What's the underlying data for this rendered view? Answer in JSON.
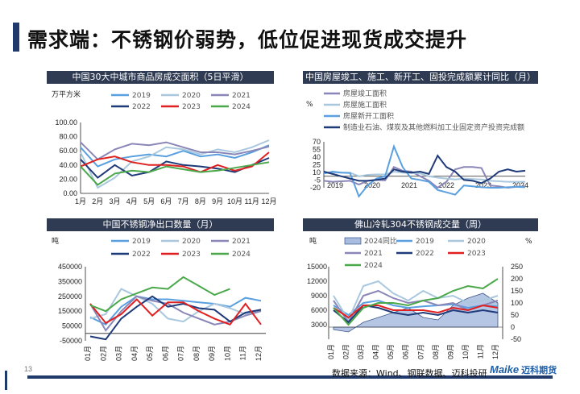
{
  "page": {
    "title": "需求端：不锈钢价弱势，低位促进现货成交提升",
    "page_number": "13",
    "source": "数据来源：Wind、钢联数据、迈科投研",
    "logo_text": "Maike",
    "logo_cn": "迈科期货"
  },
  "colors": {
    "title_bar": "#1f3a6b",
    "panel_header": "#2f3b52",
    "y2019": "#5aa0e0",
    "y2020": "#a9c8de",
    "y2021": "#8a86b8",
    "y2022": "#1f3a78",
    "y2023": "#e02020",
    "y2024": "#4aa84a"
  },
  "chart_data": [
    {
      "id": "chart1",
      "type": "line",
      "title": "中国30大中城市商品房成交面积（5日平滑）",
      "unit_label": "万平方米",
      "categories": [
        "1月",
        "2月",
        "3月",
        "4月",
        "5月",
        "6月",
        "7月",
        "8月",
        "9月",
        "10月",
        "11月",
        "12月"
      ],
      "y_ticks": [
        "100.00",
        "80.00",
        "60.00",
        "40.00",
        "20.00",
        "0.00"
      ],
      "ylim": [
        0,
        100
      ],
      "series": [
        {
          "name": "2019",
          "color": "#5aa0e0",
          "values": [
            65,
            38,
            48,
            52,
            55,
            52,
            60,
            52,
            55,
            50,
            58,
            68
          ]
        },
        {
          "name": "2020",
          "color": "#a9c8de",
          "values": [
            58,
            8,
            22,
            45,
            52,
            65,
            62,
            55,
            62,
            58,
            65,
            75
          ]
        },
        {
          "name": "2021",
          "color": "#8a86b8",
          "values": [
            72,
            48,
            62,
            70,
            68,
            72,
            65,
            58,
            58,
            55,
            60,
            66
          ]
        },
        {
          "name": "2022",
          "color": "#1f3a78",
          "values": [
            48,
            22,
            40,
            25,
            30,
            45,
            40,
            38,
            35,
            30,
            40,
            50
          ]
        },
        {
          "name": "2023",
          "color": "#e02020",
          "values": [
            38,
            48,
            52,
            44,
            40,
            40,
            38,
            30,
            40,
            32,
            38,
            58
          ]
        },
        {
          "name": "2024",
          "color": "#4aa84a",
          "values": [
            38,
            12,
            28,
            32,
            30,
            38,
            34,
            30,
            32,
            36,
            40,
            44
          ]
        }
      ]
    },
    {
      "id": "chart2",
      "type": "line",
      "title": "中国房屋竣工、施工、新开工、固投完成额累计同比（月）",
      "unit_label": "%",
      "x_ticks": [
        "2019",
        "2020",
        "2021",
        "2022",
        "2023",
        "2024"
      ],
      "y_ticks": [
        "70",
        "55",
        "40",
        "25",
        "10",
        "-5",
        "-20"
      ],
      "ylim": [
        -25,
        75
      ],
      "series": [
        {
          "name": "房屋竣工面积",
          "color": "#8a86b8",
          "values": [
            -10,
            -12,
            -11,
            -10,
            -18,
            -10,
            -8,
            -9,
            20,
            12,
            10,
            0,
            -10,
            -25,
            -12,
            15,
            20,
            20,
            18,
            -20,
            -22,
            -25,
            -23,
            -22
          ]
        },
        {
          "name": "房屋施工面积",
          "color": "#a9c8de",
          "values": [
            7,
            8,
            8,
            8,
            0,
            3,
            4,
            4,
            10,
            8,
            7,
            6,
            0,
            -3,
            -5,
            -7,
            -5,
            -6,
            -7,
            -10,
            -11,
            -12,
            -12,
            -12
          ]
        },
        {
          "name": "房屋新开工面积",
          "color": "#5aa0e0",
          "values": [
            6,
            10,
            8,
            7,
            -44,
            -20,
            -5,
            0,
            65,
            20,
            -5,
            -8,
            -12,
            -30,
            -35,
            -40,
            -20,
            -22,
            -24,
            -25,
            -25,
            -24,
            -23,
            -24
          ]
        },
        {
          "name": "制造业石油、煤炭及其他燃料加工业固定资产投资完成额",
          "color": "#1f3a78",
          "values": [
            10,
            5,
            0,
            -5,
            -10,
            -10,
            -8,
            -5,
            15,
            10,
            8,
            10,
            5,
            45,
            20,
            10,
            -8,
            -10,
            -15,
            -5,
            10,
            15,
            10,
            12
          ]
        }
      ]
    },
    {
      "id": "chart3",
      "type": "line",
      "title": "中国不锈钢净出口数量（月）",
      "unit_label": "吨",
      "categories": [
        "01月",
        "02月",
        "03月",
        "04月",
        "05月",
        "06月",
        "07月",
        "08月",
        "09月",
        "10月",
        "11月",
        "12月"
      ],
      "y_ticks": [
        "450000",
        "350000",
        "250000",
        "150000",
        "50000",
        "-50000"
      ],
      "ylim": [
        -50000,
        450000
      ],
      "series": [
        {
          "name": "2019",
          "color": "#5aa0e0",
          "values": [
            110000,
            60000,
            180000,
            250000,
            230000,
            230000,
            220000,
            210000,
            200000,
            180000,
            240000,
            220000
          ]
        },
        {
          "name": "2020",
          "color": "#a9c8de",
          "values": [
            100000,
            130000,
            300000,
            250000,
            200000,
            100000,
            80000,
            150000,
            200000,
            170000,
            130000,
            160000
          ]
        },
        {
          "name": "2021",
          "color": "#8a86b8",
          "values": [
            200000,
            20000,
            150000,
            250000,
            220000,
            200000,
            140000,
            100000,
            60000,
            80000,
            120000,
            150000
          ]
        },
        {
          "name": "2022",
          "color": "#1f3a78",
          "values": [
            -20000,
            -40000,
            100000,
            180000,
            250000,
            180000,
            200000,
            170000,
            160000,
            80000,
            140000,
            160000
          ]
        },
        {
          "name": "2023",
          "color": "#e02020",
          "values": [
            200000,
            70000,
            130000,
            230000,
            120000,
            210000,
            210000,
            150000,
            100000,
            60000,
            200000,
            60000
          ]
        },
        {
          "name": "2024",
          "color": "#4aa84a",
          "values": [
            190000,
            150000,
            230000,
            270000,
            310000,
            300000,
            380000,
            320000,
            260000,
            300000,
            null,
            null
          ]
        }
      ]
    },
    {
      "id": "chart4",
      "type": "area",
      "title": "佛山冷轧304不锈钢成交量（周）",
      "unit_left": "吨",
      "unit_right": "%",
      "categories": [
        "01月",
        "02月",
        "03月",
        "04月",
        "05月",
        "06月",
        "07月",
        "08月",
        "09月",
        "10月",
        "11月",
        "12月"
      ],
      "y_ticks": [
        "15000",
        "12000",
        "9000",
        "6000",
        "3000"
      ],
      "y2_ticks": [
        "250",
        "200",
        "150",
        "100",
        "50",
        "0",
        "-50"
      ],
      "ylim": [
        0,
        15000
      ],
      "y2lim": [
        -50,
        250
      ],
      "series": [
        {
          "name": "2024同比",
          "color": "#a9bde0",
          "values": [
            -10,
            -20,
            20,
            40,
            60,
            80,
            40,
            30,
            90,
            120,
            140,
            100
          ]
        },
        {
          "name": "2019",
          "color": "#5aa0e0",
          "values": [
            7000,
            5000,
            7500,
            8000,
            7000,
            6500,
            6800,
            7000,
            7200,
            6500,
            7000,
            6800
          ]
        },
        {
          "name": "2020",
          "color": "#a9c8de",
          "values": [
            9000,
            4000,
            11000,
            12000,
            9500,
            8000,
            10000,
            8500,
            9000,
            7500,
            8000,
            9000
          ]
        },
        {
          "name": "2021",
          "color": "#8a86b8",
          "values": [
            8000,
            3500,
            9000,
            10000,
            8500,
            7500,
            8000,
            7000,
            7500,
            6000,
            7000,
            8000
          ]
        },
        {
          "name": "2022",
          "color": "#1f3a78",
          "values": [
            6000,
            3500,
            7000,
            6500,
            5500,
            5000,
            5500,
            5000,
            6000,
            5500,
            6000,
            5500
          ]
        },
        {
          "name": "2023",
          "color": "#e02020",
          "values": [
            6500,
            4500,
            7000,
            7000,
            6000,
            6000,
            6000,
            5500,
            6500,
            6000,
            7000,
            6500
          ]
        },
        {
          "name": "2024",
          "color": "#4aa84a",
          "values": [
            6500,
            3000,
            6500,
            7500,
            7500,
            7000,
            8000,
            8500,
            10000,
            11000,
            10500,
            12500
          ]
        }
      ]
    }
  ]
}
